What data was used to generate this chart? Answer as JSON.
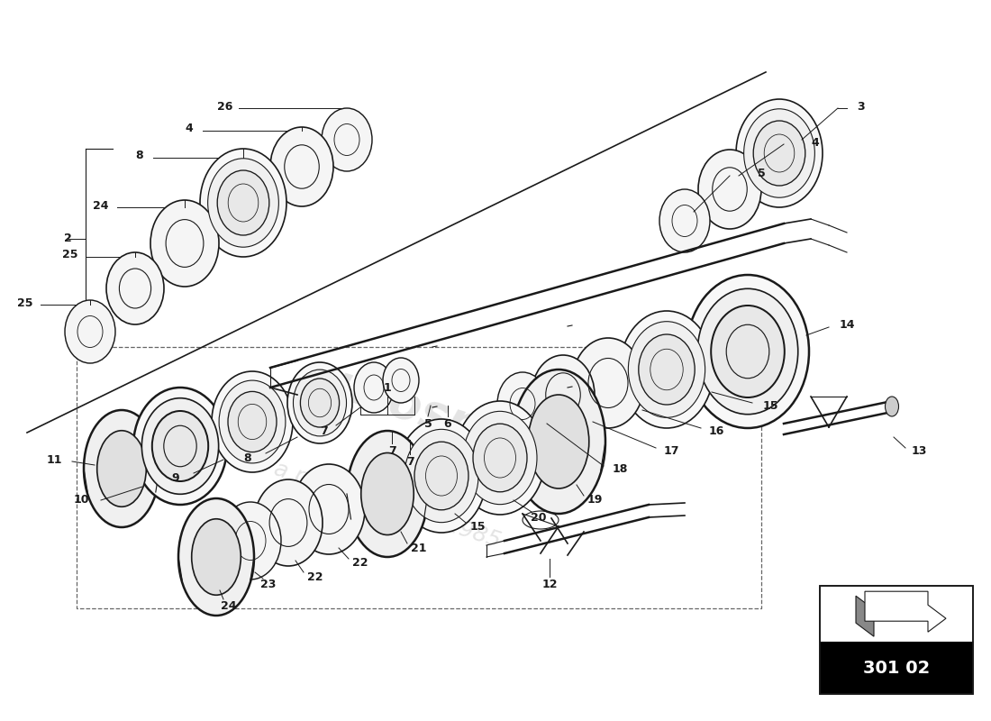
{
  "bg_color": "#ffffff",
  "line_color": "#1a1a1a",
  "diagram_code": "301 02",
  "figsize": [
    11.0,
    8.0
  ],
  "dpi": 100
}
